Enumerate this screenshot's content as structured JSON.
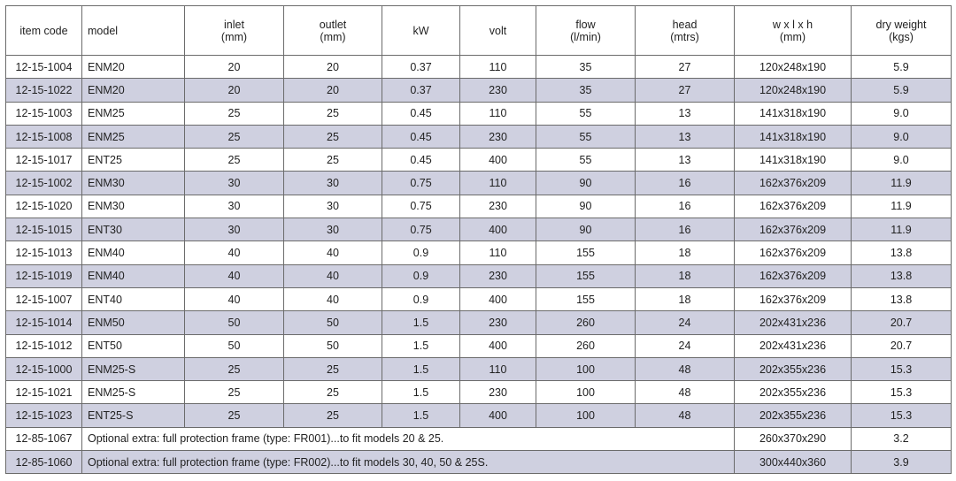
{
  "columns": [
    {
      "line1": "item code",
      "line2": ""
    },
    {
      "line1": "model",
      "line2": ""
    },
    {
      "line1": "inlet",
      "line2": "(mm)"
    },
    {
      "line1": "outlet",
      "line2": "(mm)"
    },
    {
      "line1": "kW",
      "line2": ""
    },
    {
      "line1": "volt",
      "line2": ""
    },
    {
      "line1": "flow",
      "line2": "(l/min)"
    },
    {
      "line1": "head",
      "line2": "(mtrs)"
    },
    {
      "line1": "w x l x h",
      "line2": "(mm)"
    },
    {
      "line1": "dry weight",
      "line2": "(kgs)"
    }
  ],
  "rows": [
    {
      "code": "12-15-1004",
      "model": "ENM20",
      "inlet": "20",
      "outlet": "20",
      "kw": "0.37",
      "volt": "110",
      "flow": "35",
      "head": "27",
      "dims": "120x248x190",
      "weight": "5.9"
    },
    {
      "code": "12-15-1022",
      "model": "ENM20",
      "inlet": "20",
      "outlet": "20",
      "kw": "0.37",
      "volt": "230",
      "flow": "35",
      "head": "27",
      "dims": "120x248x190",
      "weight": "5.9"
    },
    {
      "code": "12-15-1003",
      "model": "ENM25",
      "inlet": "25",
      "outlet": "25",
      "kw": "0.45",
      "volt": "110",
      "flow": "55",
      "head": "13",
      "dims": "141x318x190",
      "weight": "9.0"
    },
    {
      "code": "12-15-1008",
      "model": "ENM25",
      "inlet": "25",
      "outlet": "25",
      "kw": "0.45",
      "volt": "230",
      "flow": "55",
      "head": "13",
      "dims": "141x318x190",
      "weight": "9.0"
    },
    {
      "code": "12-15-1017",
      "model": "ENT25",
      "inlet": "25",
      "outlet": "25",
      "kw": "0.45",
      "volt": "400",
      "flow": "55",
      "head": "13",
      "dims": "141x318x190",
      "weight": "9.0"
    },
    {
      "code": "12-15-1002",
      "model": "ENM30",
      "inlet": "30",
      "outlet": "30",
      "kw": "0.75",
      "volt": "110",
      "flow": "90",
      "head": "16",
      "dims": "162x376x209",
      "weight": "11.9"
    },
    {
      "code": "12-15-1020",
      "model": "ENM30",
      "inlet": "30",
      "outlet": "30",
      "kw": "0.75",
      "volt": "230",
      "flow": "90",
      "head": "16",
      "dims": "162x376x209",
      "weight": "11.9"
    },
    {
      "code": "12-15-1015",
      "model": "ENT30",
      "inlet": "30",
      "outlet": "30",
      "kw": "0.75",
      "volt": "400",
      "flow": "90",
      "head": "16",
      "dims": "162x376x209",
      "weight": "11.9"
    },
    {
      "code": "12-15-1013",
      "model": "ENM40",
      "inlet": "40",
      "outlet": "40",
      "kw": "0.9",
      "volt": "110",
      "flow": "155",
      "head": "18",
      "dims": "162x376x209",
      "weight": "13.8"
    },
    {
      "code": "12-15-1019",
      "model": "ENM40",
      "inlet": "40",
      "outlet": "40",
      "kw": "0.9",
      "volt": "230",
      "flow": "155",
      "head": "18",
      "dims": "162x376x209",
      "weight": "13.8"
    },
    {
      "code": "12-15-1007",
      "model": "ENT40",
      "inlet": "40",
      "outlet": "40",
      "kw": "0.9",
      "volt": "400",
      "flow": "155",
      "head": "18",
      "dims": "162x376x209",
      "weight": "13.8"
    },
    {
      "code": "12-15-1014",
      "model": "ENM50",
      "inlet": "50",
      "outlet": "50",
      "kw": "1.5",
      "volt": "230",
      "flow": "260",
      "head": "24",
      "dims": "202x431x236",
      "weight": "20.7"
    },
    {
      "code": "12-15-1012",
      "model": "ENT50",
      "inlet": "50",
      "outlet": "50",
      "kw": "1.5",
      "volt": "400",
      "flow": "260",
      "head": "24",
      "dims": "202x431x236",
      "weight": "20.7"
    },
    {
      "code": "12-15-1000",
      "model": "ENM25-S",
      "inlet": "25",
      "outlet": "25",
      "kw": "1.5",
      "volt": "110",
      "flow": "100",
      "head": "48",
      "dims": "202x355x236",
      "weight": "15.3"
    },
    {
      "code": "12-15-1021",
      "model": "ENM25-S",
      "inlet": "25",
      "outlet": "25",
      "kw": "1.5",
      "volt": "230",
      "flow": "100",
      "head": "48",
      "dims": "202x355x236",
      "weight": "15.3"
    },
    {
      "code": "12-15-1023",
      "model": "ENT25-S",
      "inlet": "25",
      "outlet": "25",
      "kw": "1.5",
      "volt": "400",
      "flow": "100",
      "head": "48",
      "dims": "202x355x236",
      "weight": "15.3"
    }
  ],
  "extras": [
    {
      "code": "12-85-1067",
      "description": "Optional extra: full protection frame (type: FR001)...to fit models 20 & 25.",
      "dims": "260x370x290",
      "weight": "3.2"
    },
    {
      "code": "12-85-1060",
      "description": "Optional extra: full protection frame (type: FR002)...to fit models 30, 40, 50 & 25S.",
      "dims": "300x440x360",
      "weight": "3.9"
    }
  ],
  "colors": {
    "row_alt": "#cfd0e0",
    "border": "#6b6b6b"
  }
}
